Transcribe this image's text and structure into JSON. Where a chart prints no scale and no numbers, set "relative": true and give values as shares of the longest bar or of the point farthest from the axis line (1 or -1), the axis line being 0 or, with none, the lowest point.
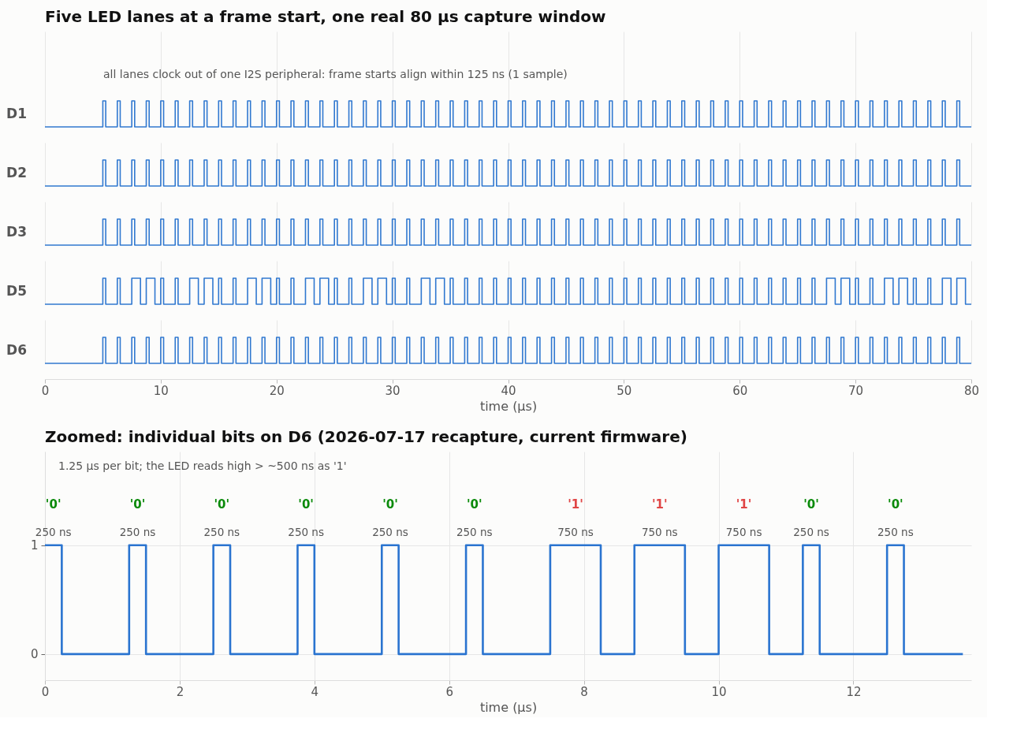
{
  "chart_data": [
    {
      "type": "step",
      "title": "Five LED lanes at a frame start, one real 80 µs capture window",
      "xlim": [
        0,
        80
      ],
      "xticks": [
        0,
        10,
        20,
        30,
        40,
        50,
        60,
        70,
        80
      ],
      "grid": "x",
      "relative": true,
      "tick_labels": false,
      "annotations": [
        "all lanes clock out of one I2S peripheral: frame starts align within 125 ns (1 sample)"
      ],
      "series": [
        {
          "name": "D1",
          "color": "#3078d0",
          "x": [
            0,
            5,
            5.25,
            6.25,
            6.5,
            7.5,
            7.75,
            8.75,
            9,
            10,
            10.25,
            11.25,
            11.5,
            12.5,
            12.75,
            13.75,
            14,
            15,
            15.25,
            16.25,
            16.5,
            17.5,
            17.75,
            18.75,
            19,
            20,
            20.25,
            21.25,
            21.5,
            22.5,
            22.75,
            23.75,
            24,
            25,
            25.25,
            26.25,
            26.5,
            27.5,
            27.75,
            28.75,
            29,
            30,
            30.25,
            31.25,
            31.5,
            32.5,
            32.75,
            33.75,
            34,
            35,
            35.25,
            36.25,
            36.5,
            37.5,
            37.75,
            38.75,
            39,
            40,
            40.25,
            41.25,
            41.5,
            42.5,
            42.75,
            43.75,
            44,
            45,
            45.25,
            46.25,
            46.5,
            47.5,
            47.75,
            48.75,
            49,
            50,
            50.25,
            51.25,
            51.5,
            52.5,
            52.75,
            53.75,
            54,
            55,
            55.25,
            56.25,
            56.5,
            57.5,
            57.75,
            58.75,
            59,
            60,
            60.25,
            61.25,
            61.5,
            62.5,
            62.75,
            63.75,
            64,
            65,
            65.25,
            66.25,
            66.5,
            67.5,
            67.75,
            68.75,
            69,
            70,
            70.25,
            71.25,
            71.5,
            72.5,
            72.75,
            73.75,
            74,
            75,
            75.25,
            76.25,
            76.5,
            77.5,
            77.75,
            78.75,
            79,
            80
          ],
          "values": [
            0,
            1,
            0,
            1,
            0,
            1,
            0,
            1,
            0,
            1,
            0,
            1,
            0,
            1,
            0,
            1,
            0,
            1,
            0,
            1,
            0,
            1,
            0,
            1,
            0,
            1,
            0,
            1,
            0,
            1,
            0,
            1,
            0,
            1,
            0,
            1,
            0,
            1,
            0,
            1,
            0,
            1,
            0,
            1,
            0,
            1,
            0,
            1,
            0,
            1,
            0,
            1,
            0,
            1,
            0,
            1,
            0,
            1,
            0,
            1,
            0,
            1,
            0,
            1,
            0,
            1,
            0,
            1,
            0,
            1,
            0,
            1,
            0,
            1,
            0,
            1,
            0,
            1,
            0,
            1,
            0,
            1,
            0,
            1,
            0,
            1,
            0,
            1,
            0,
            1,
            0,
            1,
            0,
            1,
            0,
            1,
            0,
            1,
            0,
            1,
            0,
            1,
            0,
            1,
            0,
            1,
            0,
            1,
            0,
            1,
            0,
            1,
            0,
            1,
            0,
            1,
            0,
            1,
            0,
            1,
            0,
            0
          ]
        }
      ]
    },
    {
      "type": "step",
      "xlim": [
        0,
        80
      ],
      "xticks": [
        0,
        10,
        20,
        30,
        40,
        50,
        60,
        70,
        80
      ],
      "grid": "x",
      "relative": true,
      "tick_labels": false,
      "series": [
        {
          "name": "D2",
          "color": "#3078d0",
          "x": [
            0,
            5,
            5.25,
            6.25,
            6.5,
            7.5,
            7.75,
            8.75,
            9,
            10,
            10.25,
            11.25,
            11.5,
            12.5,
            12.75,
            13.75,
            14,
            15,
            15.25,
            16.25,
            16.5,
            17.5,
            17.75,
            18.75,
            19,
            20,
            20.25,
            21.25,
            21.5,
            22.5,
            22.75,
            23.75,
            24,
            25,
            25.25,
            26.25,
            26.5,
            27.5,
            27.75,
            28.75,
            29,
            30,
            30.25,
            31.25,
            31.5,
            32.5,
            32.75,
            33.75,
            34,
            35,
            35.25,
            36.25,
            36.5,
            37.5,
            37.75,
            38.75,
            39,
            40,
            40.25,
            41.25,
            41.5,
            42.5,
            42.75,
            43.75,
            44,
            45,
            45.25,
            46.25,
            46.5,
            47.5,
            47.75,
            48.75,
            49,
            50,
            50.25,
            51.25,
            51.5,
            52.5,
            52.75,
            53.75,
            54,
            55,
            55.25,
            56.25,
            56.5,
            57.5,
            57.75,
            58.75,
            59,
            60,
            60.25,
            61.25,
            61.5,
            62.5,
            62.75,
            63.75,
            64,
            65,
            65.25,
            66.25,
            66.5,
            67.5,
            67.75,
            68.75,
            69,
            70,
            70.25,
            71.25,
            71.5,
            72.5,
            72.75,
            73.75,
            74,
            75,
            75.25,
            76.25,
            76.5,
            77.5,
            77.75,
            78.75,
            79,
            80
          ],
          "values": [
            0,
            1,
            0,
            1,
            0,
            1,
            0,
            1,
            0,
            1,
            0,
            1,
            0,
            1,
            0,
            1,
            0,
            1,
            0,
            1,
            0,
            1,
            0,
            1,
            0,
            1,
            0,
            1,
            0,
            1,
            0,
            1,
            0,
            1,
            0,
            1,
            0,
            1,
            0,
            1,
            0,
            1,
            0,
            1,
            0,
            1,
            0,
            1,
            0,
            1,
            0,
            1,
            0,
            1,
            0,
            1,
            0,
            1,
            0,
            1,
            0,
            1,
            0,
            1,
            0,
            1,
            0,
            1,
            0,
            1,
            0,
            1,
            0,
            1,
            0,
            1,
            0,
            1,
            0,
            1,
            0,
            1,
            0,
            1,
            0,
            1,
            0,
            1,
            0,
            1,
            0,
            1,
            0,
            1,
            0,
            1,
            0,
            1,
            0,
            1,
            0,
            1,
            0,
            1,
            0,
            1,
            0,
            1,
            0,
            1,
            0,
            1,
            0,
            1,
            0,
            1,
            0,
            1,
            0,
            1,
            0,
            0
          ]
        }
      ]
    },
    {
      "type": "step",
      "xlim": [
        0,
        80
      ],
      "xticks": [
        0,
        10,
        20,
        30,
        40,
        50,
        60,
        70,
        80
      ],
      "grid": "x",
      "relative": true,
      "tick_labels": false,
      "series": [
        {
          "name": "D3",
          "color": "#3078d0",
          "x": [
            0,
            5,
            5.25,
            6.25,
            6.5,
            7.5,
            7.75,
            8.75,
            9,
            10,
            10.25,
            11.25,
            11.5,
            12.5,
            12.75,
            13.75,
            14,
            15,
            15.25,
            16.25,
            16.5,
            17.5,
            17.75,
            18.75,
            19,
            20,
            20.25,
            21.25,
            21.5,
            22.5,
            22.75,
            23.75,
            24,
            25,
            25.25,
            26.25,
            26.5,
            27.5,
            27.75,
            28.75,
            29,
            30,
            30.25,
            31.25,
            31.5,
            32.5,
            32.75,
            33.75,
            34,
            35,
            35.25,
            36.25,
            36.5,
            37.5,
            37.75,
            38.75,
            39,
            40,
            40.25,
            41.25,
            41.5,
            42.5,
            42.75,
            43.75,
            44,
            45,
            45.25,
            46.25,
            46.5,
            47.5,
            47.75,
            48.75,
            49,
            50,
            50.25,
            51.25,
            51.5,
            52.5,
            52.75,
            53.75,
            54,
            55,
            55.25,
            56.25,
            56.5,
            57.5,
            57.75,
            58.75,
            59,
            60,
            60.25,
            61.25,
            61.5,
            62.5,
            62.75,
            63.75,
            64,
            65,
            65.25,
            66.25,
            66.5,
            67.5,
            67.75,
            68.75,
            69,
            70,
            70.25,
            71.25,
            71.5,
            72.5,
            72.75,
            73.75,
            74,
            75,
            75.25,
            76.25,
            76.5,
            77.5,
            77.75,
            78.75,
            79,
            80
          ],
          "values": [
            0,
            1,
            0,
            1,
            0,
            1,
            0,
            1,
            0,
            1,
            0,
            1,
            0,
            1,
            0,
            1,
            0,
            1,
            0,
            1,
            0,
            1,
            0,
            1,
            0,
            1,
            0,
            1,
            0,
            1,
            0,
            1,
            0,
            1,
            0,
            1,
            0,
            1,
            0,
            1,
            0,
            1,
            0,
            1,
            0,
            1,
            0,
            1,
            0,
            1,
            0,
            1,
            0,
            1,
            0,
            1,
            0,
            1,
            0,
            1,
            0,
            1,
            0,
            1,
            0,
            1,
            0,
            1,
            0,
            1,
            0,
            1,
            0,
            1,
            0,
            1,
            0,
            1,
            0,
            1,
            0,
            1,
            0,
            1,
            0,
            1,
            0,
            1,
            0,
            1,
            0,
            1,
            0,
            1,
            0,
            1,
            0,
            1,
            0,
            1,
            0,
            1,
            0,
            1,
            0,
            1,
            0,
            1,
            0,
            1,
            0,
            1,
            0,
            1,
            0,
            1,
            0,
            1,
            0,
            1,
            0,
            0
          ]
        }
      ]
    },
    {
      "type": "step",
      "xlim": [
        0,
        80
      ],
      "xticks": [
        0,
        10,
        20,
        30,
        40,
        50,
        60,
        70,
        80
      ],
      "grid": "x",
      "relative": true,
      "tick_labels": false,
      "series": [
        {
          "name": "D5",
          "color": "#3078d0",
          "x": [
            0,
            5,
            5.25,
            6.25,
            6.5,
            7.5,
            8.25,
            8.75,
            9.5,
            10,
            10.25,
            11.25,
            11.5,
            12.5,
            13.25,
            13.75,
            14.5,
            15,
            15.25,
            16.25,
            16.5,
            17.5,
            18.25,
            18.75,
            19.5,
            20,
            20.25,
            21.25,
            21.5,
            22.5,
            23.25,
            23.75,
            24.5,
            25,
            25.25,
            26.25,
            26.5,
            27.5,
            28.25,
            28.75,
            29.5,
            30,
            30.25,
            31.25,
            31.5,
            32.5,
            33.25,
            33.75,
            34.5,
            35,
            35.25,
            36.25,
            36.5,
            37.5,
            37.75,
            38.75,
            39,
            40,
            40.25,
            41.25,
            41.5,
            42.5,
            42.75,
            43.75,
            44,
            45,
            45.25,
            46.25,
            46.5,
            47.5,
            47.75,
            48.75,
            49,
            50,
            50.25,
            51.25,
            51.5,
            52.5,
            52.75,
            53.75,
            54,
            55,
            55.25,
            56.25,
            56.5,
            57.5,
            57.75,
            58.75,
            59,
            60,
            60.25,
            61.25,
            61.5,
            62.5,
            62.75,
            63.75,
            64,
            65,
            65.25,
            66.25,
            66.5,
            67.5,
            68.25,
            68.75,
            69.5,
            70,
            70.25,
            71.25,
            71.5,
            72.5,
            73.25,
            73.75,
            74.5,
            75,
            75.25,
            76.25,
            76.5,
            77.5,
            78.25,
            78.75,
            79.5,
            80
          ],
          "values": [
            0,
            1,
            0,
            1,
            0,
            1,
            0,
            1,
            0,
            1,
            0,
            1,
            0,
            1,
            0,
            1,
            0,
            1,
            0,
            1,
            0,
            1,
            0,
            1,
            0,
            1,
            0,
            1,
            0,
            1,
            0,
            1,
            0,
            1,
            0,
            1,
            0,
            1,
            0,
            1,
            0,
            1,
            0,
            1,
            0,
            1,
            0,
            1,
            0,
            1,
            0,
            1,
            0,
            1,
            0,
            1,
            0,
            1,
            0,
            1,
            0,
            1,
            0,
            1,
            0,
            1,
            0,
            1,
            0,
            1,
            0,
            1,
            0,
            1,
            0,
            1,
            0,
            1,
            0,
            1,
            0,
            1,
            0,
            1,
            0,
            1,
            0,
            1,
            0,
            1,
            0,
            1,
            0,
            1,
            0,
            1,
            0,
            1,
            0,
            1,
            0,
            1,
            0,
            1,
            0,
            1,
            0,
            1,
            0,
            1,
            0,
            1,
            0,
            1,
            0,
            1,
            0,
            1,
            0,
            1,
            0,
            0
          ]
        }
      ]
    },
    {
      "type": "step",
      "xlabel": "time (µs)",
      "xlim": [
        0,
        80
      ],
      "xticks": [
        0,
        10,
        20,
        30,
        40,
        50,
        60,
        70,
        80
      ],
      "grid": "x",
      "relative": true,
      "tick_labels": "x",
      "series": [
        {
          "name": "D6",
          "color": "#3078d0",
          "x": [
            0,
            5,
            5.25,
            6.25,
            6.5,
            7.5,
            7.75,
            8.75,
            9,
            10,
            10.25,
            11.25,
            11.5,
            12.5,
            12.75,
            13.75,
            14,
            15,
            15.25,
            16.25,
            16.5,
            17.5,
            17.75,
            18.75,
            19,
            20,
            20.25,
            21.25,
            21.5,
            22.5,
            22.75,
            23.75,
            24,
            25,
            25.25,
            26.25,
            26.5,
            27.5,
            27.75,
            28.75,
            29,
            30,
            30.25,
            31.25,
            31.5,
            32.5,
            32.75,
            33.75,
            34,
            35,
            35.25,
            36.25,
            36.5,
            37.5,
            37.75,
            38.75,
            39,
            40,
            40.25,
            41.25,
            41.5,
            42.5,
            42.75,
            43.75,
            44,
            45,
            45.25,
            46.25,
            46.5,
            47.5,
            47.75,
            48.75,
            49,
            50,
            50.25,
            51.25,
            51.5,
            52.5,
            52.75,
            53.75,
            54,
            55,
            55.25,
            56.25,
            56.5,
            57.5,
            57.75,
            58.75,
            59,
            60,
            60.25,
            61.25,
            61.5,
            62.5,
            62.75,
            63.75,
            64,
            65,
            65.25,
            66.25,
            66.5,
            67.5,
            67.75,
            68.75,
            69,
            70,
            70.25,
            71.25,
            71.5,
            72.5,
            72.75,
            73.75,
            74,
            75,
            75.25,
            76.25,
            76.5,
            77.5,
            77.75,
            78.75,
            79,
            80
          ],
          "values": [
            0,
            1,
            0,
            1,
            0,
            1,
            0,
            1,
            0,
            1,
            0,
            1,
            0,
            1,
            0,
            1,
            0,
            1,
            0,
            1,
            0,
            1,
            0,
            1,
            0,
            1,
            0,
            1,
            0,
            1,
            0,
            1,
            0,
            1,
            0,
            1,
            0,
            1,
            0,
            1,
            0,
            1,
            0,
            1,
            0,
            1,
            0,
            1,
            0,
            1,
            0,
            1,
            0,
            1,
            0,
            1,
            0,
            1,
            0,
            1,
            0,
            1,
            0,
            1,
            0,
            1,
            0,
            1,
            0,
            1,
            0,
            1,
            0,
            1,
            0,
            1,
            0,
            1,
            0,
            1,
            0,
            1,
            0,
            1,
            0,
            1,
            0,
            1,
            0,
            1,
            0,
            1,
            0,
            1,
            0,
            1,
            0,
            1,
            0,
            1,
            0,
            1,
            0,
            1,
            0,
            1,
            0,
            1,
            0,
            1,
            0,
            1,
            0,
            1,
            0,
            1,
            0,
            1,
            0,
            1,
            0,
            0
          ]
        }
      ]
    },
    {
      "type": "step",
      "title": "Zoomed: individual bits on D6 (2026-07-17 recapture, current firmware)",
      "xlabel": "time (µs)",
      "xlim": [
        0,
        13.75
      ],
      "xticks": [
        0,
        2,
        4,
        6,
        8,
        10,
        12
      ],
      "ylim": [
        -0.24,
        1.86
      ],
      "yticks": [
        0,
        1
      ],
      "grid": true,
      "annotations": [
        "1.25 µs per bit; the LED reads high > ~500 ns as '1'",
        "'0'",
        "'0'",
        "'0'",
        "'0'",
        "'0'",
        "'0'",
        "'1'",
        "'1'",
        "'1'",
        "'0'",
        "'0'",
        "250 ns",
        "250 ns",
        "250 ns",
        "250 ns",
        "250 ns",
        "250 ns",
        "750 ns",
        "750 ns",
        "750 ns",
        "250 ns",
        "250 ns"
      ],
      "series": [
        {
          "color": "#2a74d0",
          "x": [
            0,
            0.25,
            1.25,
            1.5,
            2.5,
            2.75,
            3.75,
            4,
            5,
            5.25,
            6.25,
            6.5,
            7.5,
            8.25,
            8.75,
            9.5,
            10,
            10.75,
            11.25,
            11.5,
            12.5,
            12.75,
            13.625
          ],
          "values": [
            1,
            0,
            1,
            0,
            1,
            0,
            1,
            0,
            1,
            0,
            1,
            0,
            1,
            0,
            1,
            0,
            1,
            0,
            1,
            0,
            1,
            0,
            0
          ]
        }
      ]
    }
  ]
}
